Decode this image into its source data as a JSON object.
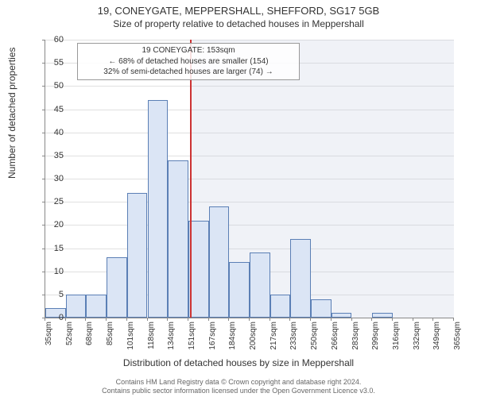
{
  "header": {
    "title": "19, CONEYGATE, MEPPERSHALL, SHEFFORD, SG17 5GB",
    "subtitle": "Size of property relative to detached houses in Meppershall"
  },
  "annotation": {
    "line1": "19 CONEYGATE: 153sqm",
    "line2": "← 68% of detached houses are smaller (154)",
    "line3": "32% of semi-detached houses are larger (74) →"
  },
  "axes": {
    "y_label": "Number of detached properties",
    "x_label": "Distribution of detached houses by size in Meppershall",
    "y_ticks": [
      0,
      5,
      10,
      15,
      20,
      25,
      30,
      35,
      40,
      45,
      50,
      55,
      60
    ],
    "x_ticks": [
      "35sqm",
      "52sqm",
      "68sqm",
      "85sqm",
      "101sqm",
      "118sqm",
      "134sqm",
      "151sqm",
      "167sqm",
      "184sqm",
      "200sqm",
      "217sqm",
      "233sqm",
      "250sqm",
      "266sqm",
      "283sqm",
      "299sqm",
      "316sqm",
      "332sqm",
      "349sqm",
      "365sqm"
    ],
    "ylim": [
      0,
      60
    ]
  },
  "chart": {
    "type": "histogram",
    "bar_fill": "#dbe5f5",
    "bar_stroke": "#5b7fb5",
    "ref_color": "#cc3333",
    "shade_color": "rgba(200,210,225,0.28)",
    "grid_color": "#e0e0e0",
    "background": "#ffffff",
    "ref_position_index": 7.1,
    "bars": [
      {
        "x_index": 0,
        "height": 2
      },
      {
        "x_index": 1,
        "height": 5
      },
      {
        "x_index": 2,
        "height": 5
      },
      {
        "x_index": 3,
        "height": 13
      },
      {
        "x_index": 4,
        "height": 27
      },
      {
        "x_index": 5,
        "height": 47
      },
      {
        "x_index": 6,
        "height": 34
      },
      {
        "x_index": 7,
        "height": 21
      },
      {
        "x_index": 8,
        "height": 24
      },
      {
        "x_index": 9,
        "height": 12
      },
      {
        "x_index": 10,
        "height": 14
      },
      {
        "x_index": 11,
        "height": 5
      },
      {
        "x_index": 12,
        "height": 17
      },
      {
        "x_index": 13,
        "height": 4
      },
      {
        "x_index": 14,
        "height": 1
      },
      {
        "x_index": 16,
        "height": 1
      }
    ]
  },
  "footer": {
    "line1": "Contains HM Land Registry data © Crown copyright and database right 2024.",
    "line2": "Contains public sector information licensed under the Open Government Licence v3.0."
  }
}
